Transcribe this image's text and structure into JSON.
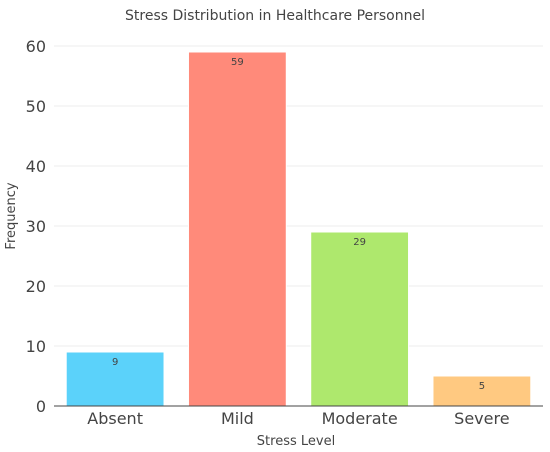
{
  "chart_data": {
    "type": "bar",
    "title": "Stress Distribution in Healthcare Personnel",
    "xlabel": "Stress Level",
    "ylabel": "Frequency",
    "categories": [
      "Absent",
      "Mild",
      "Moderate",
      "Severe"
    ],
    "values": [
      9,
      59,
      29,
      5
    ],
    "data_labels": [
      "9",
      "59",
      "29",
      "5"
    ],
    "colors": [
      "#5bd2fa",
      "#ff8a7a",
      "#aee86d",
      "#ffc981"
    ],
    "ylim": [
      0,
      62
    ],
    "yticks": [
      0,
      10,
      20,
      30,
      40,
      50,
      60
    ],
    "ytick_labels": [
      "0",
      "10",
      "20",
      "30",
      "40",
      "50",
      "60"
    ],
    "grid": true,
    "legend": "none"
  }
}
